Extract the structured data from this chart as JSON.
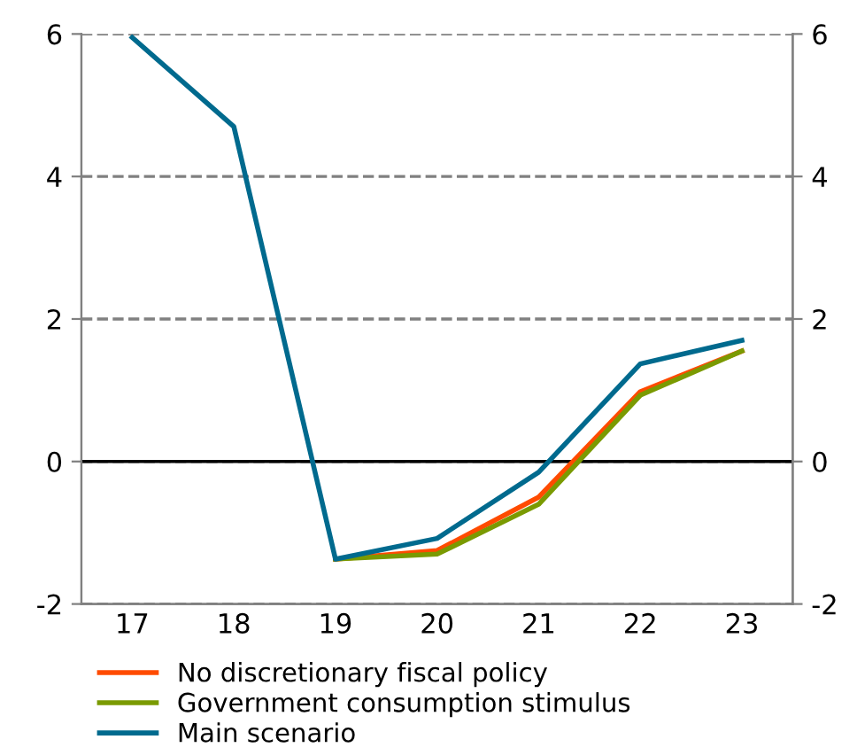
{
  "chart_data": {
    "type": "line",
    "categories": [
      "17",
      "18",
      "19",
      "20",
      "21",
      "22",
      "23"
    ],
    "series": [
      {
        "name": "No discretionary fiscal policy",
        "color": "#ff4b00",
        "values": [
          null,
          null,
          -1.37,
          -1.25,
          -0.5,
          0.98,
          1.55
        ]
      },
      {
        "name": "Government consumption stimulus",
        "color": "#7a9a01",
        "values": [
          null,
          null,
          -1.37,
          -1.3,
          -0.6,
          0.93,
          1.55
        ]
      },
      {
        "name": "Main scenario",
        "color": "#006a8e",
        "values": [
          5.95,
          4.7,
          -1.37,
          -1.08,
          -0.15,
          1.37,
          1.7
        ]
      }
    ],
    "ylim": [
      -2,
      6
    ],
    "yticks": [
      -2,
      0,
      2,
      4,
      6
    ],
    "y2lim": [
      -2,
      6
    ],
    "y2ticks": [
      -2,
      0,
      2,
      4,
      6
    ],
    "grid": "y",
    "legend": "bottom",
    "marker": "none",
    "line_style": "solid",
    "ref_lines": [
      {
        "axis": "y",
        "value": 0,
        "label": null,
        "color": "#000000"
      }
    ]
  }
}
